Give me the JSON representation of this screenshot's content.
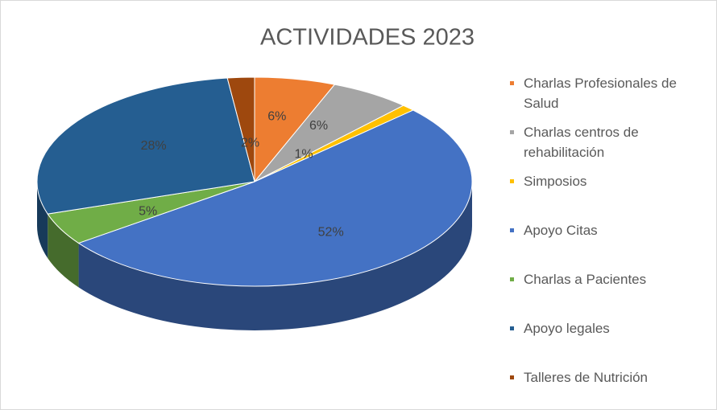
{
  "chart_data": {
    "type": "pie3d",
    "title": "ACTIVIDADES 2023",
    "categories": [
      "Charlas Profesionales de Salud",
      "Charlas centros de rehabilitación",
      "Simposios",
      "Apoyo Citas",
      "Charlas a Pacientes",
      "Apoyo legales",
      "Talleres de Nutrición"
    ],
    "values": [
      6,
      6,
      1,
      52,
      5,
      28,
      2
    ],
    "value_labels": [
      "6%",
      "6%",
      "1%",
      "52%",
      "5%",
      "28%",
      "2%"
    ],
    "colors": [
      "#ed7d31",
      "#a5a5a5",
      "#ffc000",
      "#4472c4",
      "#70ad47",
      "#255e91",
      "#9e480e"
    ],
    "legend": "right"
  }
}
